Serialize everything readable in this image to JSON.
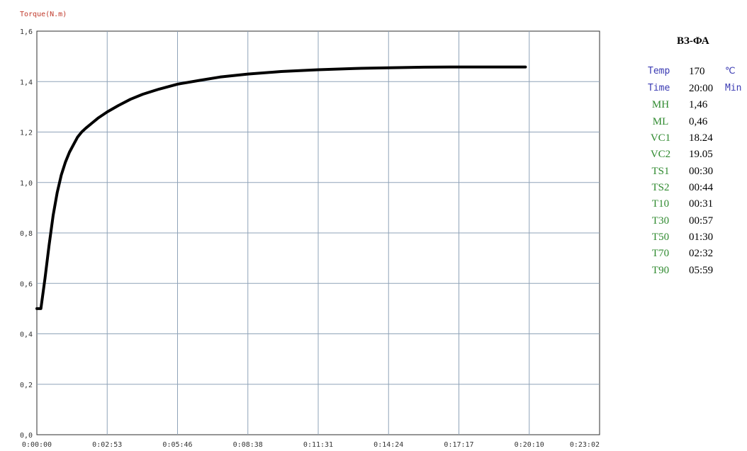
{
  "colors": {
    "header_param": "#3b3bb3",
    "result_param": "#2f8a2f",
    "unit": "#3b3bb3",
    "curve": "#000000",
    "grid": "#8fa3b8",
    "axis_label": "#c0392b"
  },
  "panel": {
    "title": "ВЗ-ФА",
    "header_params": [
      {
        "name": "Temp",
        "value": "170",
        "unit": "℃"
      },
      {
        "name": "Time",
        "value": "20:00",
        "unit": "Min"
      }
    ],
    "results": [
      {
        "name": "MH",
        "value": "1,46"
      },
      {
        "name": "ML",
        "value": "0,46"
      },
      {
        "name": "VC1",
        "value": "18.24"
      },
      {
        "name": "VC2",
        "value": "19.05"
      },
      {
        "name": "TS1",
        "value": "00:30"
      },
      {
        "name": "TS2",
        "value": "00:44"
      },
      {
        "name": "T10",
        "value": "00:31"
      },
      {
        "name": "T30",
        "value": "00:57"
      },
      {
        "name": "T50",
        "value": "01:30"
      },
      {
        "name": "T70",
        "value": "02:32"
      },
      {
        "name": "T90",
        "value": "05:59"
      }
    ]
  },
  "chart_data": {
    "type": "line",
    "title": "",
    "ylabel": "Torque(N.m)",
    "xlabel": "",
    "ylim": [
      0,
      1.6
    ],
    "xlim_seconds": [
      0,
      1382
    ],
    "grid": true,
    "y_ticks": [
      "0,0",
      "0,2",
      "0,4",
      "0,6",
      "0,8",
      "1,0",
      "1,2",
      "1,4",
      "1,6"
    ],
    "x_ticks": [
      "0:00:00",
      "0:02:53",
      "0:05:46",
      "0:08:38",
      "0:11:31",
      "0:14:24",
      "0:17:17",
      "0:20:10",
      "0:23:02"
    ],
    "series": [
      {
        "x": [
          0,
          5,
          10,
          20,
          30,
          40,
          50,
          60,
          70,
          80,
          90,
          100,
          110,
          120,
          135,
          150,
          173,
          200,
          230,
          260,
          300,
          346,
          400,
          450,
          518,
          600,
          691,
          780,
          864,
          950,
          1037,
          1120,
          1200
        ],
        "y": [
          0.5,
          0.5,
          0.5,
          0.62,
          0.75,
          0.87,
          0.96,
          1.03,
          1.08,
          1.12,
          1.15,
          1.18,
          1.2,
          1.215,
          1.235,
          1.255,
          1.28,
          1.305,
          1.33,
          1.35,
          1.37,
          1.39,
          1.405,
          1.418,
          1.43,
          1.44,
          1.447,
          1.452,
          1.455,
          1.457,
          1.458,
          1.458,
          1.458
        ]
      }
    ]
  }
}
